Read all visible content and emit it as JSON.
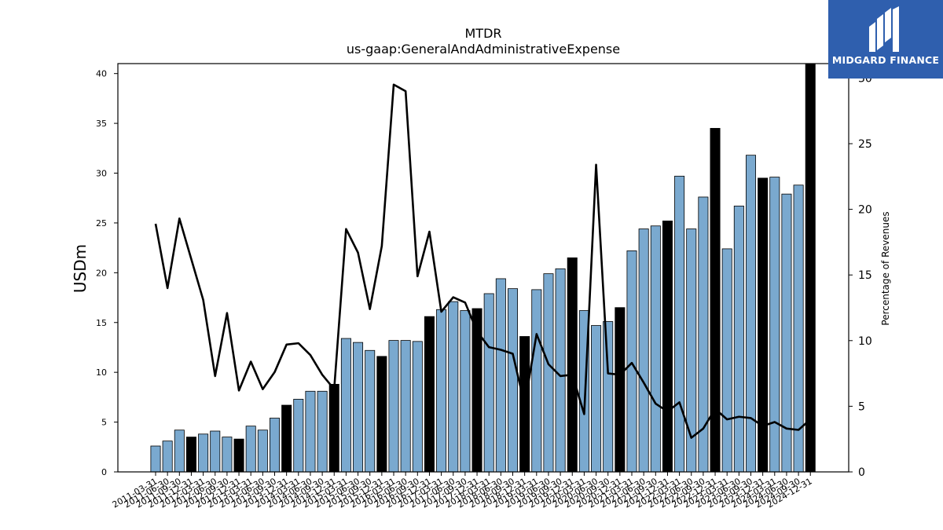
{
  "chart_data": {
    "type": "bar",
    "title": "MTDR",
    "subtitle": "us-gaap:GeneralAndAdministrativeExpense",
    "ylabel": "USDm",
    "y2label": "Percentage of Revenues",
    "ylim": [
      0,
      41
    ],
    "y2lim": [
      0,
      31.1
    ],
    "yticks": [
      0,
      5,
      10,
      15,
      20,
      25,
      30,
      35,
      40
    ],
    "y2ticks": [
      0,
      5,
      10,
      15,
      20,
      25,
      30
    ],
    "categories": [
      "2011-03-31",
      "2011-06-30",
      "2011-09-30",
      "2011-12-31",
      "2012-03-31",
      "2012-06-30",
      "2012-09-30",
      "2012-12-31",
      "2013-03-31",
      "2013-06-30",
      "2013-09-30",
      "2013-12-31",
      "2014-03-31",
      "2014-06-30",
      "2014-09-30",
      "2014-12-31",
      "2015-03-31",
      "2015-06-30",
      "2015-09-30",
      "2015-12-31",
      "2016-03-31",
      "2016-06-30",
      "2016-09-30",
      "2016-12-31",
      "2017-03-31",
      "2017-06-30",
      "2017-09-30",
      "2017-12-31",
      "2018-03-31",
      "2018-06-30",
      "2018-09-30",
      "2018-12-31",
      "2019-03-31",
      "2019-06-30",
      "2019-09-30",
      "2019-12-31",
      "2020-03-31",
      "2020-06-30",
      "2020-09-30",
      "2020-12-31",
      "2021-03-31",
      "2021-06-30",
      "2021-09-30",
      "2021-12-31",
      "2022-03-31",
      "2022-06-30",
      "2022-09-30",
      "2022-12-31",
      "2023-03-31",
      "2023-06-30",
      "2023-09-30",
      "2023-12-31",
      "2024-03-31",
      "2024-06-30",
      "2024-09-30",
      "2024-12-31"
    ],
    "series": [
      {
        "type": "bar",
        "values": [
          2.6,
          3.1,
          4.2,
          3.5,
          3.8,
          4.1,
          3.5,
          3.3,
          4.6,
          4.2,
          5.4,
          6.7,
          7.3,
          8.1,
          8.1,
          8.8,
          13.4,
          13.0,
          12.2,
          11.6,
          13.2,
          13.2,
          13.1,
          15.6,
          16.3,
          17.1,
          16.2,
          16.4,
          17.9,
          19.4,
          18.4,
          13.6,
          18.3,
          19.9,
          20.4,
          21.5,
          16.2,
          14.7,
          15.1,
          16.5,
          22.2,
          24.4,
          24.7,
          25.2,
          29.7,
          24.4,
          27.6,
          34.5,
          22.4,
          26.7,
          31.8,
          29.5,
          29.6,
          27.9,
          28.8,
          41.0
        ],
        "highlight_color": "#000000",
        "color": "#7aa9cf"
      },
      {
        "type": "line",
        "axis": "right",
        "values": [
          18.9,
          14.0,
          19.3,
          16.2,
          13.1,
          7.3,
          12.1,
          6.2,
          8.4,
          6.3,
          7.6,
          9.7,
          9.8,
          8.9,
          7.4,
          6.3,
          18.5,
          16.7,
          12.4,
          17.2,
          29.5,
          29.0,
          14.9,
          18.3,
          12.2,
          13.3,
          12.9,
          10.7,
          9.5,
          9.3,
          9.0,
          5.1,
          10.5,
          8.2,
          7.3,
          7.4,
          4.4,
          23.4,
          7.5,
          7.4,
          8.3,
          6.8,
          5.2,
          4.6,
          5.3,
          2.6,
          3.3,
          4.8,
          4.0,
          4.2,
          4.1,
          3.5,
          3.8,
          3.3,
          3.2,
          4.0
        ],
        "color": "#000000"
      }
    ],
    "highlight_indices": [
      3,
      7,
      11,
      15,
      19,
      23,
      27,
      31,
      35,
      39,
      43,
      47,
      51,
      55
    ],
    "grid": false,
    "legend": "none"
  },
  "logo": {
    "text": "MIDGARD FINANCE",
    "color": "#2f5fae"
  }
}
